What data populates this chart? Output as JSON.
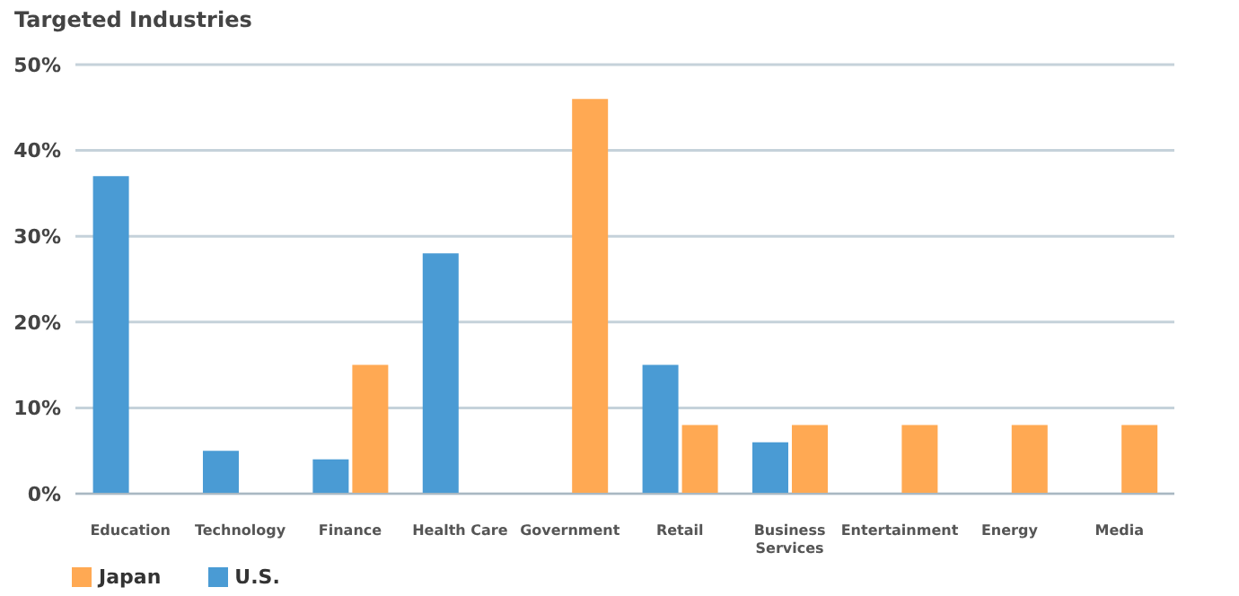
{
  "chart_data": {
    "type": "bar",
    "title": "Targeted Industries",
    "categories": [
      "Education",
      "Technology",
      "Finance",
      "Health Care",
      "Government",
      "Retail",
      "Business Services",
      "Entertainment",
      "Energy",
      "Media"
    ],
    "series": [
      {
        "name": "U.S.",
        "color": "#4a9bd4",
        "values": [
          37,
          5,
          4,
          28,
          0,
          15,
          6,
          0,
          0,
          0
        ]
      },
      {
        "name": "Japan",
        "color": "#ffa953",
        "values": [
          0,
          0,
          15,
          0,
          46,
          8,
          8,
          8,
          8,
          8
        ]
      }
    ],
    "ylim": [
      0,
      50
    ],
    "yticks": [
      {
        "value": 0,
        "label": "0%"
      },
      {
        "value": 10,
        "label": "10%"
      },
      {
        "value": 20,
        "label": "20%"
      },
      {
        "value": 30,
        "label": "30%"
      },
      {
        "value": 40,
        "label": "40%"
      },
      {
        "value": 50,
        "label": "50%"
      }
    ],
    "grid": "y",
    "legend": "bottom left"
  }
}
